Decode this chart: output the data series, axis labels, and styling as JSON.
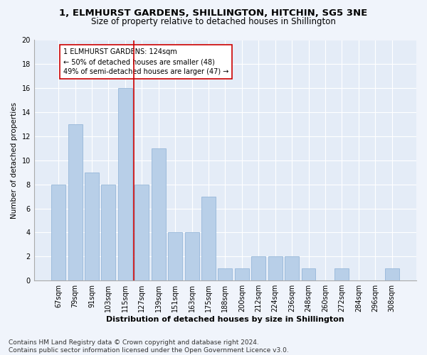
{
  "title1": "1, ELMHURST GARDENS, SHILLINGTON, HITCHIN, SG5 3NE",
  "title2": "Size of property relative to detached houses in Shillington",
  "xlabel": "Distribution of detached houses by size in Shillington",
  "ylabel": "Number of detached properties",
  "categories": [
    "67sqm",
    "79sqm",
    "91sqm",
    "103sqm",
    "115sqm",
    "127sqm",
    "139sqm",
    "151sqm",
    "163sqm",
    "175sqm",
    "188sqm",
    "200sqm",
    "212sqm",
    "224sqm",
    "236sqm",
    "248sqm",
    "260sqm",
    "272sqm",
    "284sqm",
    "296sqm",
    "308sqm"
  ],
  "values": [
    8,
    13,
    9,
    8,
    16,
    8,
    11,
    4,
    4,
    7,
    1,
    1,
    2,
    2,
    2,
    1,
    0,
    1,
    0,
    0,
    1
  ],
  "bar_color": "#b8cfe8",
  "bar_edge_color": "#8aaed4",
  "vline_color": "#cc0000",
  "annotation_text": "1 ELMHURST GARDENS: 124sqm\n← 50% of detached houses are smaller (48)\n49% of semi-detached houses are larger (47) →",
  "annotation_box_color": "#ffffff",
  "annotation_box_edge": "#cc0000",
  "ylim": [
    0,
    20
  ],
  "yticks": [
    0,
    2,
    4,
    6,
    8,
    10,
    12,
    14,
    16,
    18,
    20
  ],
  "footer": "Contains HM Land Registry data © Crown copyright and database right 2024.\nContains public sector information licensed under the Open Government Licence v3.0.",
  "bg_color": "#f0f4fb",
  "plot_bg_color": "#e4ecf7",
  "grid_color": "#ffffff",
  "title1_fontsize": 9.5,
  "title2_fontsize": 8.5,
  "xlabel_fontsize": 8,
  "ylabel_fontsize": 7.5,
  "tick_fontsize": 7,
  "annot_fontsize": 7,
  "footer_fontsize": 6.5
}
